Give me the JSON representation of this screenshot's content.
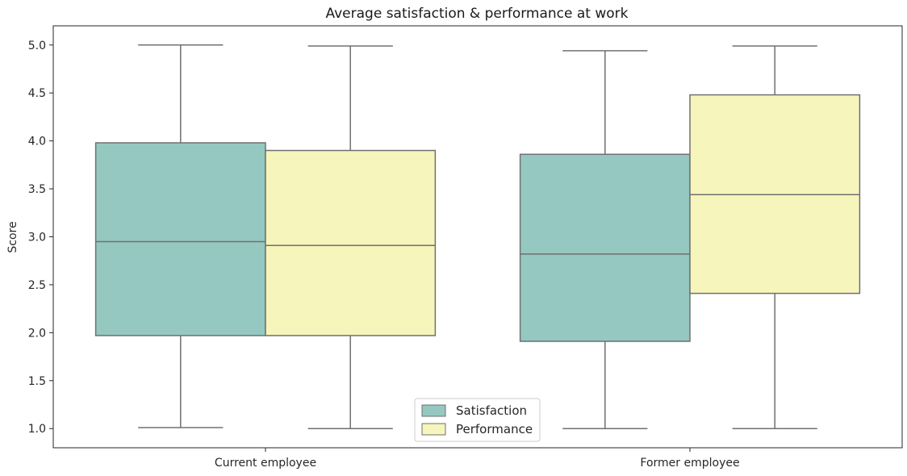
{
  "chart_data": {
    "type": "box",
    "title": "Average satisfaction & performance at work",
    "xlabel": "",
    "ylabel": "Score",
    "ylim": [
      0.8,
      5.2
    ],
    "yticks": [
      "1.0",
      "1.5",
      "2.0",
      "2.5",
      "3.0",
      "3.5",
      "4.0",
      "4.5",
      "5.0"
    ],
    "ytick_values": [
      1.0,
      1.5,
      2.0,
      2.5,
      3.0,
      3.5,
      4.0,
      4.5,
      5.0
    ],
    "categories": [
      "Current employee",
      "Former employee"
    ],
    "grid": false,
    "legend_position": "bottom-center",
    "series": [
      {
        "name": "Satisfaction",
        "color": "#95c8c1",
        "boxes": [
          {
            "whisker_low": 1.01,
            "q1": 1.97,
            "median": 2.95,
            "q3": 3.98,
            "whisker_high": 5.0
          },
          {
            "whisker_low": 1.0,
            "q1": 1.91,
            "median": 2.82,
            "q3": 3.86,
            "whisker_high": 4.94
          }
        ]
      },
      {
        "name": "Performance",
        "color": "#f6f5bb",
        "boxes": [
          {
            "whisker_low": 1.0,
            "q1": 1.97,
            "median": 2.91,
            "q3": 3.9,
            "whisker_high": 4.99
          },
          {
            "whisker_low": 1.0,
            "q1": 2.41,
            "median": 3.44,
            "q3": 4.48,
            "whisker_high": 4.99
          }
        ]
      }
    ]
  }
}
